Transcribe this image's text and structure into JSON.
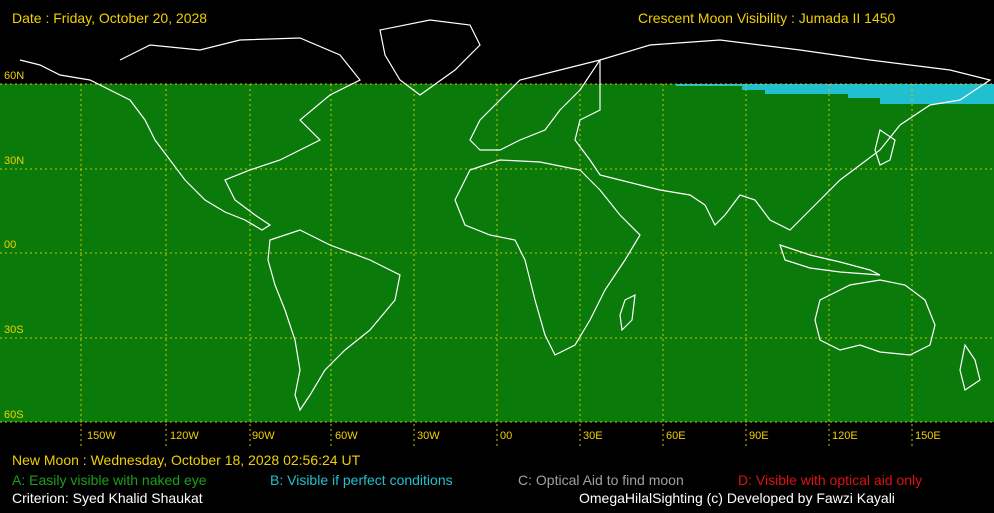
{
  "header": {
    "date_line": "Date : Friday, October 20, 2028",
    "title": "Crescent Moon Visibility : Jumada II  1450"
  },
  "map": {
    "lat_labels": [
      "60N",
      "30N",
      "00",
      "30S",
      "60S"
    ],
    "lon_labels": [
      "150W",
      "120W",
      "90W",
      "60W",
      "30W",
      "00",
      "30E",
      "60E",
      "90E",
      "120E",
      "150E"
    ],
    "colors": {
      "background": "#000000",
      "land_sea_fill": "#0a7a0a",
      "visible_perfect": "#20c0d0",
      "coastline": "#ffffff",
      "grid": "#c8c800"
    }
  },
  "footer": {
    "new_moon": "New Moon : Wednesday, October 18, 2028  02:56:24  UT",
    "legend_a": "A: Easily visible with naked eye",
    "legend_b": "B: Visible if perfect conditions",
    "legend_c": "C: Optical Aid to find moon",
    "legend_d": "D: Visible with optical aid only",
    "criterion": "Criterion: Syed Khalid Shaukat",
    "credits": "OmegaHilalSighting  (c)  Developed by Fawzi Kayali"
  }
}
